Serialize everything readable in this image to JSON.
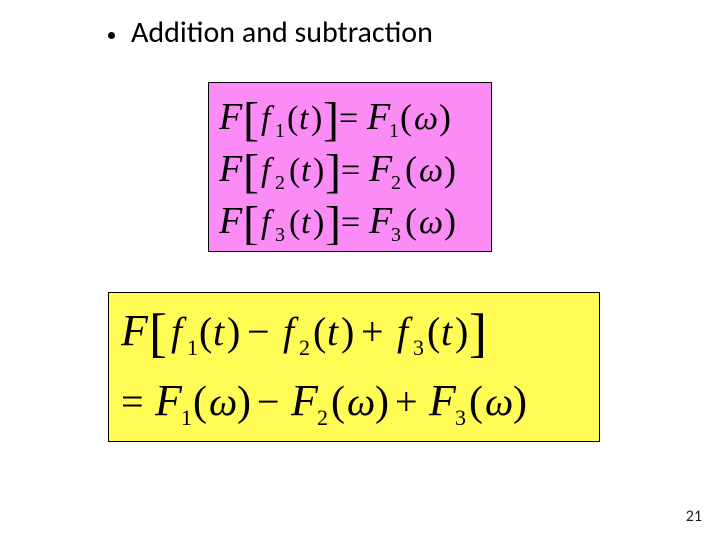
{
  "bullet": {
    "text": "Addition and subtraction"
  },
  "page": {
    "number": "21"
  },
  "box1": {
    "bg_color": "#fb8bf5",
    "border_color": "#000000",
    "text_color": "#000000",
    "font_family": "Times New Roman, serif",
    "font_style": "italic",
    "lines": [
      {
        "operator": "F",
        "func": "f",
        "sub": "1",
        "arg": "t",
        "result": "F",
        "rsub": "1",
        "rarg": "ω"
      },
      {
        "operator": "F",
        "func": "f",
        "sub": "2",
        "arg": "t",
        "result": "F",
        "rsub": "2",
        "rarg": "ω"
      },
      {
        "operator": "F",
        "func": "f",
        "sub": "3",
        "arg": "t",
        "result": "F",
        "rsub": "3",
        "rarg": "ω"
      }
    ]
  },
  "box2": {
    "bg_color": "#fffd55",
    "border_color": "#000000",
    "text_color": "#000000",
    "font_family": "Times New Roman, serif",
    "font_style": "italic",
    "line1": {
      "operator": "F",
      "terms": [
        {
          "func": "f",
          "sub": "1",
          "arg": "t"
        },
        {
          "op": "−",
          "func": "f",
          "sub": "2",
          "arg": "t"
        },
        {
          "op": "+",
          "func": "f",
          "sub": "3",
          "arg": "t"
        }
      ]
    },
    "line2": {
      "prefix": "=",
      "terms": [
        {
          "result": "F",
          "sub": "1",
          "arg": "ω"
        },
        {
          "op": "−",
          "result": "F",
          "sub": "2",
          "arg": "ω"
        },
        {
          "op": "+",
          "result": "F",
          "sub": "3",
          "arg": "ω"
        }
      ]
    }
  }
}
